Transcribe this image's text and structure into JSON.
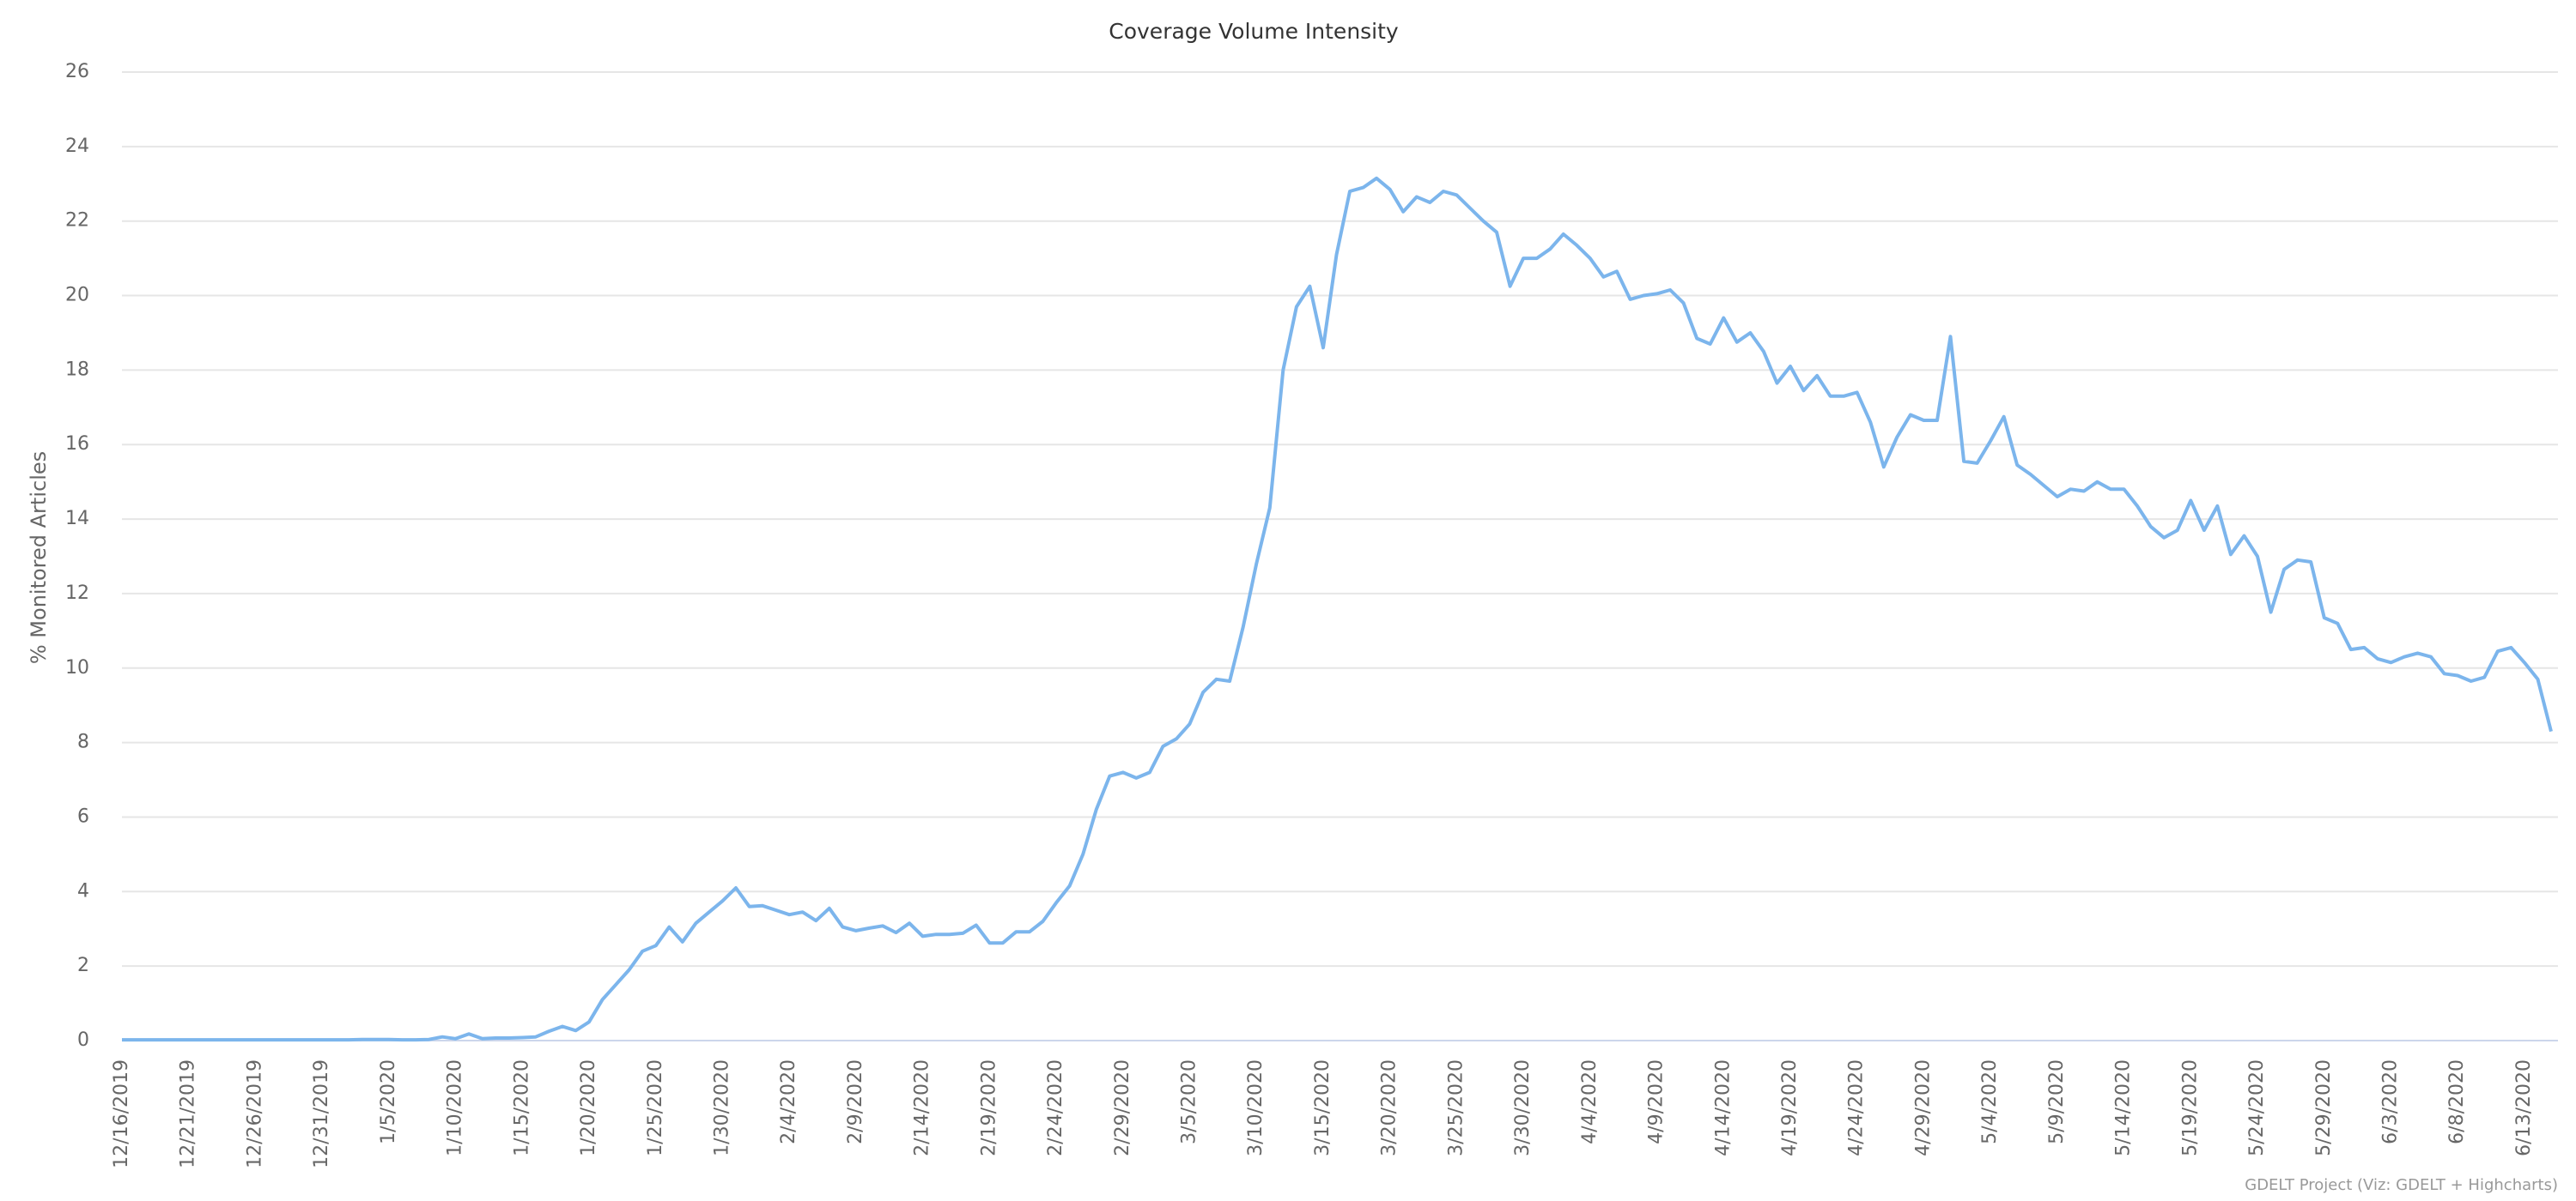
{
  "chart_data": {
    "type": "line",
    "title": "Coverage Volume Intensity",
    "y_label": "% Monitored Articles",
    "credits": "GDELT Project (Viz: GDELT + Highcharts)",
    "color": "#7cb5ec",
    "grid": true,
    "ylim": [
      0,
      26
    ],
    "yticks": [
      0,
      2,
      4,
      6,
      8,
      10,
      12,
      14,
      16,
      18,
      20,
      22,
      24,
      26
    ],
    "categories": [
      "12/16/2019",
      null,
      null,
      null,
      null,
      "12/21/2019",
      null,
      null,
      null,
      null,
      "12/26/2019",
      null,
      null,
      null,
      null,
      "12/31/2019",
      null,
      null,
      null,
      null,
      "1/5/2020",
      null,
      null,
      null,
      null,
      "1/10/2020",
      null,
      null,
      null,
      null,
      "1/15/2020",
      null,
      null,
      null,
      null,
      "1/20/2020",
      null,
      null,
      null,
      null,
      "1/25/2020",
      null,
      null,
      null,
      null,
      "1/30/2020",
      null,
      null,
      null,
      null,
      "2/4/2020",
      null,
      null,
      null,
      null,
      "2/9/2020",
      null,
      null,
      null,
      null,
      "2/14/2020",
      null,
      null,
      null,
      null,
      "2/19/2020",
      null,
      null,
      null,
      null,
      "2/24/2020",
      null,
      null,
      null,
      null,
      "2/29/2020",
      null,
      null,
      null,
      null,
      "3/5/2020",
      null,
      null,
      null,
      null,
      "3/10/2020",
      null,
      null,
      null,
      null,
      "3/15/2020",
      null,
      null,
      null,
      null,
      "3/20/2020",
      null,
      null,
      null,
      null,
      "3/25/2020",
      null,
      null,
      null,
      null,
      "3/30/2020",
      null,
      null,
      null,
      null,
      "4/4/2020",
      null,
      null,
      null,
      null,
      "4/9/2020",
      null,
      null,
      null,
      null,
      "4/14/2020",
      null,
      null,
      null,
      null,
      "4/19/2020",
      null,
      null,
      null,
      null,
      "4/24/2020",
      null,
      null,
      null,
      null,
      "4/29/2020",
      null,
      null,
      null,
      null,
      "5/4/2020",
      null,
      null,
      null,
      null,
      "5/9/2020",
      null,
      null,
      null,
      null,
      "5/14/2020",
      null,
      null,
      null,
      null,
      "5/19/2020",
      null,
      null,
      null,
      null,
      "5/24/2020",
      null,
      null,
      null,
      null,
      "5/29/2020",
      null,
      null,
      null,
      null,
      "6/3/2020",
      null,
      null,
      null,
      null,
      "6/8/2020",
      null,
      null,
      null,
      null,
      "6/13/2020",
      null,
      null
    ],
    "values": [
      0.02,
      0.02,
      0.02,
      0.02,
      0.02,
      0.02,
      0.02,
      0.02,
      0.02,
      0.02,
      0.02,
      0.02,
      0.02,
      0.02,
      0.02,
      0.02,
      0.02,
      0.02,
      0.03,
      0.03,
      0.03,
      0.02,
      0.02,
      0.03,
      0.1,
      0.05,
      0.18,
      0.05,
      0.07,
      0.07,
      0.08,
      0.1,
      0.25,
      0.38,
      0.27,
      0.5,
      1.1,
      1.5,
      1.9,
      2.4,
      2.55,
      3.05,
      2.65,
      3.15,
      3.45,
      3.75,
      4.1,
      3.6,
      3.62,
      3.5,
      3.38,
      3.45,
      3.22,
      3.55,
      3.05,
      2.95,
      3.02,
      3.08,
      2.9,
      3.15,
      2.8,
      2.85,
      2.85,
      2.88,
      3.1,
      2.62,
      2.62,
      2.92,
      2.92,
      3.2,
      3.7,
      4.15,
      5.0,
      6.2,
      7.1,
      7.2,
      7.05,
      7.2,
      7.9,
      8.1,
      8.5,
      9.35,
      9.7,
      9.65,
      11.1,
      12.8,
      14.3,
      18.0,
      19.7,
      20.25,
      18.6,
      21.1,
      22.8,
      22.9,
      23.15,
      22.85,
      22.25,
      22.65,
      22.5,
      22.8,
      22.7,
      22.35,
      22.0,
      21.7,
      20.25,
      21.0,
      21.0,
      21.25,
      21.65,
      21.35,
      21.0,
      20.5,
      20.65,
      19.9,
      20.0,
      20.05,
      20.15,
      19.8,
      18.85,
      18.7,
      19.4,
      18.75,
      19.0,
      18.5,
      17.65,
      18.1,
      17.45,
      17.85,
      17.3,
      17.3,
      17.4,
      16.6,
      15.4,
      16.2,
      16.8,
      16.65,
      16.65,
      18.9,
      15.55,
      15.5,
      16.1,
      16.75,
      15.45,
      15.2,
      14.9,
      14.6,
      14.8,
      14.75,
      15.0,
      14.8,
      14.8,
      14.35,
      13.8,
      13.5,
      13.7,
      14.5,
      13.7,
      14.35,
      13.05,
      13.55,
      13.0,
      11.5,
      12.65,
      12.9,
      12.85,
      11.35,
      11.2,
      10.5,
      10.55,
      10.25,
      10.15,
      10.3,
      10.4,
      10.3,
      9.85,
      9.8,
      9.65,
      9.75,
      10.45,
      10.55,
      10.15,
      9.7,
      8.3
    ]
  }
}
